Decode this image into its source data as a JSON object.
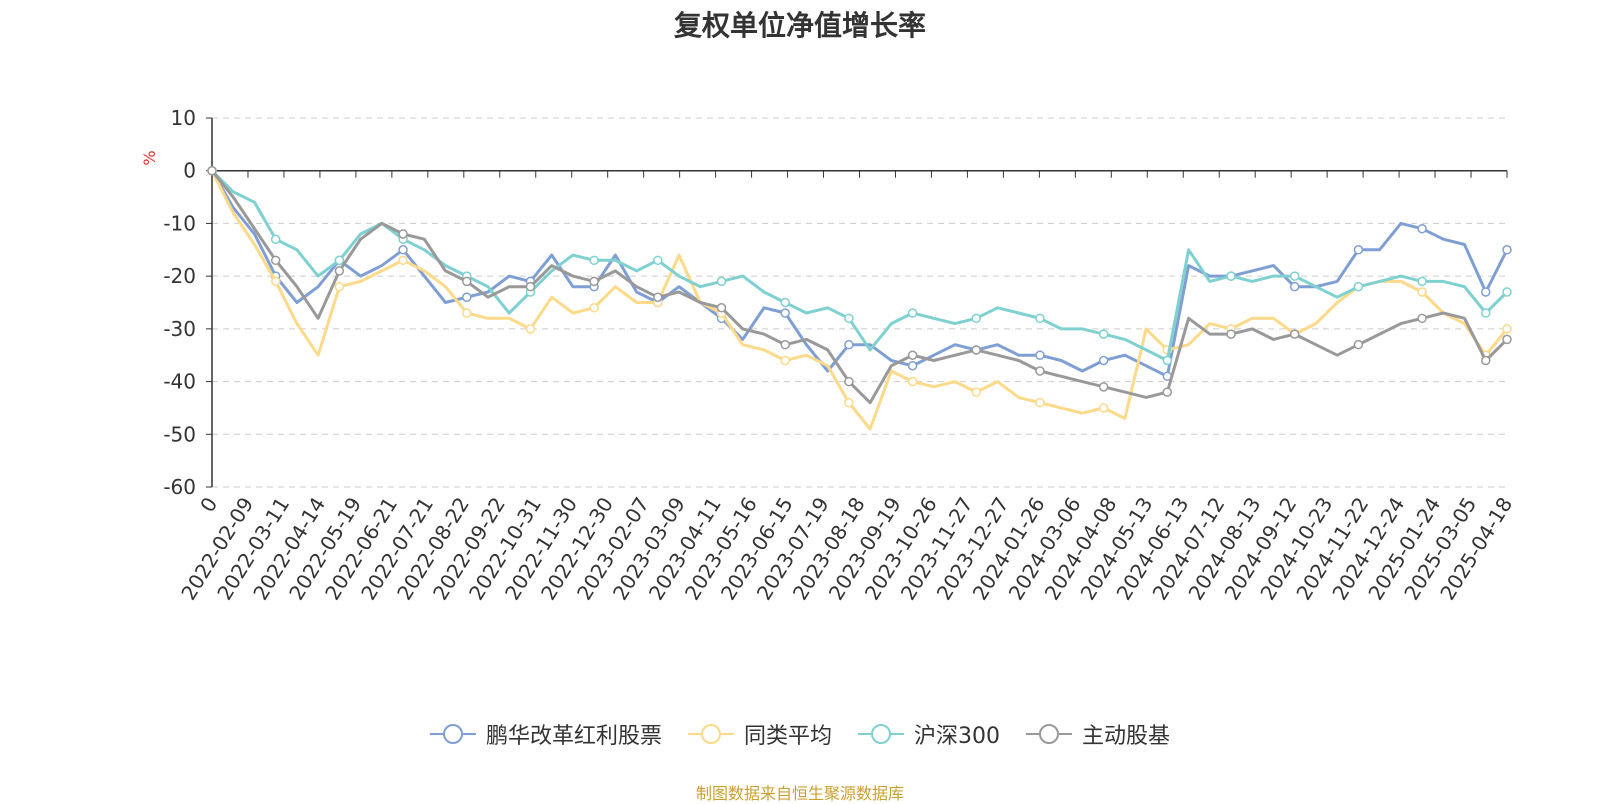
{
  "title": "复权单位净值增长率",
  "source_note": "制图数据来自恒生聚源数据库",
  "chart_data": {
    "type": "line",
    "title": "复权单位净值增长率",
    "ylabel": "%",
    "ylim": [
      -60,
      10
    ],
    "yticks": [
      10,
      0,
      -10,
      -20,
      -30,
      -40,
      -50,
      -60
    ],
    "grid": true,
    "legend_position": "bottom",
    "x_tick_labels": [
      "0",
      "2022-02-09",
      "2022-03-11",
      "2022-04-14",
      "2022-05-19",
      "2022-06-21",
      "2022-07-21",
      "2022-08-22",
      "2022-09-22",
      "2022-10-31",
      "2022-11-30",
      "2022-12-30",
      "2023-02-07",
      "2023-03-09",
      "2023-04-11",
      "2023-05-16",
      "2023-06-15",
      "2023-07-19",
      "2023-08-18",
      "2023-09-19",
      "2023-10-26",
      "2023-11-27",
      "2023-12-27",
      "2024-01-26",
      "2024-03-06",
      "2024-04-08",
      "2024-05-13",
      "2024-06-13",
      "2024-07-12",
      "2024-08-13",
      "2024-09-12",
      "2024-10-23",
      "2024-11-22",
      "2024-12-24",
      "2025-01-24",
      "2025-03-05",
      "2025-04-18"
    ],
    "series": [
      {
        "name": "鹏华改革红利股票",
        "color": "#7f9fd4",
        "values": [
          0,
          -7,
          -12,
          -20,
          -25,
          -22,
          -17,
          -20,
          -18,
          -15,
          -20,
          -25,
          -24,
          -23,
          -20,
          -21,
          -16,
          -22,
          -22,
          -16,
          -23,
          -25,
          -22,
          -25,
          -28,
          -32,
          -26,
          -27,
          -33,
          -38,
          -33,
          -33,
          -36,
          -37,
          -35,
          -33,
          -34,
          -33,
          -35,
          -35,
          -36,
          -38,
          -36,
          -35,
          -37,
          -39,
          -18,
          -20,
          -20,
          -19,
          -18,
          -22,
          -22,
          -21,
          -15,
          -15,
          -10,
          -11,
          -13,
          -14,
          -23,
          -15
        ]
      },
      {
        "name": "同类平均",
        "color": "#fdd98a",
        "values": [
          0,
          -8,
          -14,
          -21,
          -29,
          -35,
          -22,
          -21,
          -19,
          -17,
          -19,
          -22,
          -27,
          -28,
          -28,
          -30,
          -24,
          -27,
          -26,
          -22,
          -25,
          -25,
          -16,
          -25,
          -27,
          -33,
          -34,
          -36,
          -35,
          -37,
          -44,
          -49,
          -38,
          -40,
          -41,
          -40,
          -42,
          -40,
          -43,
          -44,
          -45,
          -46,
          -45,
          -47,
          -30,
          -34,
          -33,
          -29,
          -30,
          -28,
          -28,
          -31,
          -29,
          -25,
          -22,
          -21,
          -21,
          -23,
          -27,
          -29,
          -35,
          -30
        ]
      },
      {
        "name": "沪深300",
        "color": "#7fd1d1",
        "values": [
          0,
          -4,
          -6,
          -13,
          -15,
          -20,
          -17,
          -12,
          -10,
          -13,
          -15,
          -18,
          -20,
          -22,
          -27,
          -23,
          -19,
          -16,
          -17,
          -17,
          -19,
          -17,
          -20,
          -22,
          -21,
          -20,
          -23,
          -25,
          -27,
          -26,
          -28,
          -34,
          -29,
          -27,
          -28,
          -29,
          -28,
          -26,
          -27,
          -28,
          -30,
          -30,
          -31,
          -32,
          -34,
          -36,
          -15,
          -21,
          -20,
          -21,
          -20,
          -20,
          -22,
          -24,
          -22,
          -21,
          -20,
          -21,
          -21,
          -22,
          -27,
          -23
        ]
      },
      {
        "name": "主动股基",
        "color": "#999999",
        "values": [
          0,
          -5,
          -11,
          -17,
          -22,
          -28,
          -19,
          -13,
          -10,
          -12,
          -13,
          -19,
          -21,
          -24,
          -22,
          -22,
          -18,
          -20,
          -21,
          -19,
          -22,
          -24,
          -23,
          -25,
          -26,
          -30,
          -31,
          -33,
          -32,
          -34,
          -40,
          -44,
          -37,
          -35,
          -36,
          -35,
          -34,
          -35,
          -36,
          -38,
          -39,
          -40,
          -41,
          -42,
          -43,
          -42,
          -28,
          -31,
          -31,
          -30,
          -32,
          -31,
          -33,
          -35,
          -33,
          -31,
          -29,
          -28,
          -27,
          -28,
          -36,
          -32
        ]
      }
    ]
  }
}
